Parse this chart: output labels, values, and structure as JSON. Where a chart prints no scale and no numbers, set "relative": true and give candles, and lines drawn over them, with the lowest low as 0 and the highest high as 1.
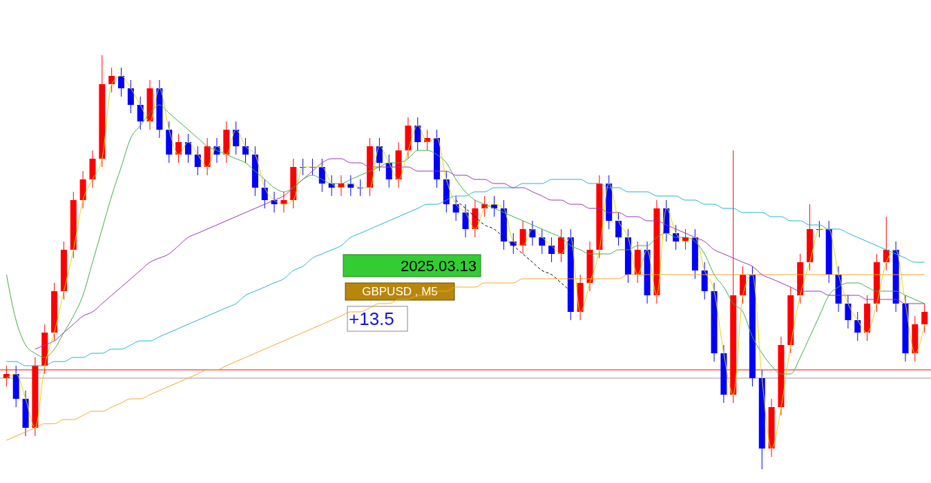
{
  "chart_data": {
    "type": "candlestick",
    "relative": true,
    "categories": [
      null,
      null,
      null,
      null,
      null,
      null,
      null,
      null,
      null,
      null,
      null,
      null,
      null,
      null,
      null,
      null,
      null,
      null,
      null,
      null,
      null,
      null,
      null,
      null,
      null,
      null,
      null,
      null,
      null,
      null,
      null,
      null,
      null,
      null,
      null,
      null,
      null,
      null,
      null,
      null,
      null,
      null,
      null,
      null,
      null,
      null,
      null,
      null,
      null,
      null,
      null,
      null,
      null,
      null,
      null,
      null,
      null,
      null,
      null,
      null,
      null,
      null,
      null,
      null,
      null,
      null,
      null,
      null,
      null,
      null,
      null,
      null,
      null,
      null,
      null,
      null,
      null,
      null,
      null,
      null,
      null,
      null,
      null,
      null,
      null,
      null,
      null,
      null,
      null,
      null,
      null,
      null,
      null,
      null,
      null,
      null,
      null
    ],
    "ohlc": [
      [
        0.22,
        0.25,
        0.2,
        0.23
      ],
      [
        0.23,
        0.25,
        0.15,
        0.17
      ],
      [
        0.17,
        0.19,
        0.08,
        0.1
      ],
      [
        0.1,
        0.27,
        0.08,
        0.25
      ],
      [
        0.25,
        0.35,
        0.23,
        0.33
      ],
      [
        0.33,
        0.45,
        0.31,
        0.43
      ],
      [
        0.43,
        0.55,
        0.41,
        0.53
      ],
      [
        0.53,
        0.67,
        0.51,
        0.65
      ],
      [
        0.65,
        0.72,
        0.63,
        0.7
      ],
      [
        0.7,
        0.77,
        0.68,
        0.75
      ],
      [
        0.75,
        1.0,
        0.73,
        0.93
      ],
      [
        0.93,
        0.97,
        0.91,
        0.95
      ],
      [
        0.95,
        0.97,
        0.9,
        0.92
      ],
      [
        0.92,
        0.94,
        0.86,
        0.88
      ],
      [
        0.88,
        0.9,
        0.82,
        0.84
      ],
      [
        0.84,
        0.94,
        0.82,
        0.92
      ],
      [
        0.92,
        0.94,
        0.8,
        0.82
      ],
      [
        0.82,
        0.84,
        0.74,
        0.76
      ],
      [
        0.76,
        0.81,
        0.74,
        0.79
      ],
      [
        0.79,
        0.81,
        0.74,
        0.76
      ],
      [
        0.76,
        0.78,
        0.71,
        0.73
      ],
      [
        0.73,
        0.8,
        0.71,
        0.78
      ],
      [
        0.78,
        0.8,
        0.74,
        0.76
      ],
      [
        0.76,
        0.84,
        0.74,
        0.82
      ],
      [
        0.82,
        0.84,
        0.76,
        0.78
      ],
      [
        0.78,
        0.8,
        0.74,
        0.76
      ],
      [
        0.76,
        0.78,
        0.66,
        0.68
      ],
      [
        0.68,
        0.7,
        0.63,
        0.65
      ],
      [
        0.65,
        0.67,
        0.62,
        0.64
      ],
      [
        0.64,
        0.67,
        0.62,
        0.65
      ],
      [
        0.65,
        0.75,
        0.63,
        0.73
      ],
      [
        0.73,
        0.75,
        0.71,
        0.73
      ],
      [
        0.73,
        0.75,
        0.71,
        0.73
      ],
      [
        0.73,
        0.75,
        0.67,
        0.69
      ],
      [
        0.69,
        0.71,
        0.66,
        0.68
      ],
      [
        0.68,
        0.71,
        0.66,
        0.69
      ],
      [
        0.69,
        0.71,
        0.66,
        0.68
      ],
      [
        0.68,
        0.7,
        0.66,
        0.68
      ],
      [
        0.68,
        0.8,
        0.66,
        0.78
      ],
      [
        0.78,
        0.8,
        0.72,
        0.74
      ],
      [
        0.74,
        0.76,
        0.68,
        0.7
      ],
      [
        0.7,
        0.79,
        0.68,
        0.77
      ],
      [
        0.77,
        0.85,
        0.75,
        0.83
      ],
      [
        0.83,
        0.85,
        0.77,
        0.79
      ],
      [
        0.79,
        0.82,
        0.77,
        0.8
      ],
      [
        0.8,
        0.82,
        0.68,
        0.7
      ],
      [
        0.7,
        0.72,
        0.62,
        0.64
      ],
      [
        0.64,
        0.66,
        0.6,
        0.62
      ],
      [
        0.62,
        0.64,
        0.56,
        0.58
      ],
      [
        0.58,
        0.65,
        0.56,
        0.63
      ],
      [
        0.63,
        0.66,
        0.61,
        0.64
      ],
      [
        0.64,
        0.66,
        0.61,
        0.63
      ],
      [
        0.63,
        0.65,
        0.53,
        0.55
      ],
      [
        0.55,
        0.57,
        0.52,
        0.54
      ],
      [
        0.54,
        0.6,
        0.52,
        0.58
      ],
      [
        0.58,
        0.6,
        0.54,
        0.56
      ],
      [
        0.56,
        0.58,
        0.52,
        0.54
      ],
      [
        0.54,
        0.56,
        0.5,
        0.52
      ],
      [
        0.52,
        0.58,
        0.5,
        0.56
      ],
      [
        0.56,
        0.58,
        0.36,
        0.38
      ],
      [
        0.38,
        0.47,
        0.36,
        0.45
      ],
      [
        0.45,
        0.55,
        0.43,
        0.53
      ],
      [
        0.53,
        0.71,
        0.51,
        0.69
      ],
      [
        0.69,
        0.71,
        0.58,
        0.6
      ],
      [
        0.6,
        0.62,
        0.54,
        0.56
      ],
      [
        0.56,
        0.58,
        0.45,
        0.47
      ],
      [
        0.47,
        0.55,
        0.45,
        0.53
      ],
      [
        0.53,
        0.55,
        0.4,
        0.42
      ],
      [
        0.42,
        0.65,
        0.4,
        0.63
      ],
      [
        0.63,
        0.65,
        0.55,
        0.57
      ],
      [
        0.57,
        0.59,
        0.53,
        0.55
      ],
      [
        0.55,
        0.58,
        0.53,
        0.56
      ],
      [
        0.56,
        0.58,
        0.46,
        0.48
      ],
      [
        0.48,
        0.5,
        0.41,
        0.43
      ],
      [
        0.43,
        0.45,
        0.26,
        0.28
      ],
      [
        0.28,
        0.3,
        0.16,
        0.18
      ],
      [
        0.18,
        0.77,
        0.16,
        0.42
      ],
      [
        0.42,
        0.49,
        0.4,
        0.47
      ],
      [
        0.47,
        0.49,
        0.2,
        0.22
      ],
      [
        0.22,
        0.24,
        0.0,
        0.05
      ],
      [
        0.05,
        0.17,
        0.03,
        0.15
      ],
      [
        0.15,
        0.32,
        0.13,
        0.3
      ],
      [
        0.3,
        0.44,
        0.28,
        0.42
      ],
      [
        0.42,
        0.52,
        0.4,
        0.5
      ],
      [
        0.5,
        0.64,
        0.48,
        0.58
      ],
      [
        0.58,
        0.6,
        0.56,
        0.58
      ],
      [
        0.58,
        0.6,
        0.45,
        0.47
      ],
      [
        0.47,
        0.49,
        0.38,
        0.4
      ],
      [
        0.4,
        0.42,
        0.34,
        0.36
      ],
      [
        0.36,
        0.38,
        0.31,
        0.33
      ],
      [
        0.33,
        0.42,
        0.31,
        0.4
      ],
      [
        0.4,
        0.52,
        0.38,
        0.5
      ],
      [
        0.5,
        0.61,
        0.48,
        0.53
      ],
      [
        0.53,
        0.55,
        0.38,
        0.4
      ],
      [
        0.4,
        0.42,
        0.26,
        0.28
      ],
      [
        0.28,
        0.37,
        0.26,
        0.35
      ],
      [
        0.35,
        0.4,
        0.33,
        0.38
      ]
    ],
    "colors": [
      "#ff0000",
      "#0000ff",
      "#0000ff",
      "#ff0000",
      "#ff0000",
      "#ff0000",
      "#ff0000",
      "#ff0000",
      "#ff0000",
      "#ff0000",
      "#ff0000",
      "#ff0000",
      "#0000ff",
      "#0000ff",
      "#0000ff",
      "#ff0000",
      "#0000ff",
      "#0000ff",
      "#ff0000",
      "#0000ff",
      "#0000ff",
      "#ff0000",
      "#0000ff",
      "#ff0000",
      "#0000ff",
      "#0000ff",
      "#0000ff",
      "#0000ff",
      "#0000ff",
      "#ff0000",
      "#ff0000",
      "#0000ff",
      "#0000ff",
      "#0000ff",
      "#0000ff",
      "#ff0000",
      "#0000ff",
      "#0000ff",
      "#ff0000",
      "#0000ff",
      "#0000ff",
      "#ff0000",
      "#ff0000",
      "#0000ff",
      "#ff0000",
      "#0000ff",
      "#0000ff",
      "#0000ff",
      "#0000ff",
      "#ff0000",
      "#ff0000",
      "#0000ff",
      "#0000ff",
      "#0000ff",
      "#ff0000",
      "#0000ff",
      "#0000ff",
      "#0000ff",
      "#ff0000",
      "#0000ff",
      "#ff0000",
      "#ff0000",
      "#ff0000",
      "#0000ff",
      "#0000ff",
      "#0000ff",
      "#ff0000",
      "#0000ff",
      "#ff0000",
      "#0000ff",
      "#0000ff",
      "#ff0000",
      "#0000ff",
      "#0000ff",
      "#0000ff",
      "#0000ff",
      "#ff0000",
      "#ff0000",
      "#0000ff",
      "#0000ff",
      "#ff0000",
      "#ff0000",
      "#ff0000",
      "#ff0000",
      "#ff0000",
      "#0000ff",
      "#0000ff",
      "#0000ff",
      "#0000ff",
      "#0000ff",
      "#ff0000",
      "#ff0000",
      "#ff0000",
      "#0000ff",
      "#0000ff",
      "#ff0000",
      "#ff0000"
    ],
    "series": [
      {
        "type": "line",
        "color": "#f5a623",
        "values": [
          0.07,
          0.08,
          0.09,
          0.1,
          0.11,
          0.11,
          0.12,
          0.12,
          0.13,
          0.14,
          0.14,
          0.15,
          0.16,
          0.17,
          0.17,
          0.18,
          0.19,
          0.2,
          0.21,
          0.22,
          0.23,
          0.24,
          0.24,
          0.25,
          0.26,
          0.27,
          0.28,
          0.29,
          0.3,
          0.31,
          0.32,
          0.33,
          0.34,
          0.35,
          0.36,
          0.37,
          0.38,
          0.38,
          0.39,
          0.4,
          0.4,
          0.41,
          0.41,
          0.42,
          0.42,
          0.43,
          0.43,
          0.44,
          0.44,
          0.44,
          0.45,
          0.45,
          0.45,
          0.45,
          0.46,
          0.46,
          0.46,
          0.46,
          0.46,
          0.46,
          0.46,
          0.46,
          0.46,
          0.46,
          0.46,
          0.47,
          0.47,
          0.47,
          0.47,
          0.47,
          0.47,
          0.47,
          0.47,
          0.47,
          0.47,
          0.47,
          0.47,
          0.47,
          0.47,
          0.47,
          0.47,
          0.47,
          0.47,
          0.47,
          0.47,
          0.47,
          0.47,
          0.47,
          0.47,
          0.47,
          0.47,
          0.47,
          0.47,
          0.47,
          0.47,
          0.47,
          0.47
        ]
      },
      {
        "type": "line",
        "color": "#1ab3d9",
        "values": [
          0.26,
          0.26,
          0.25,
          0.25,
          0.25,
          0.26,
          0.26,
          0.27,
          0.27,
          0.28,
          0.28,
          0.29,
          0.29,
          0.3,
          0.31,
          0.31,
          0.32,
          0.33,
          0.34,
          0.35,
          0.36,
          0.37,
          0.38,
          0.39,
          0.4,
          0.42,
          0.43,
          0.44,
          0.45,
          0.46,
          0.48,
          0.49,
          0.51,
          0.52,
          0.53,
          0.54,
          0.56,
          0.57,
          0.58,
          0.59,
          0.6,
          0.61,
          0.62,
          0.63,
          0.64,
          0.64,
          0.65,
          0.66,
          0.66,
          0.67,
          0.67,
          0.68,
          0.68,
          0.68,
          0.69,
          0.69,
          0.69,
          0.7,
          0.7,
          0.7,
          0.7,
          0.69,
          0.69,
          0.68,
          0.68,
          0.67,
          0.67,
          0.67,
          0.66,
          0.66,
          0.66,
          0.65,
          0.65,
          0.64,
          0.64,
          0.63,
          0.63,
          0.62,
          0.62,
          0.62,
          0.61,
          0.61,
          0.6,
          0.6,
          0.59,
          0.59,
          0.58,
          0.58,
          0.57,
          0.56,
          0.55,
          0.54,
          0.53,
          0.52,
          0.51,
          0.5,
          0.5
        ]
      },
      {
        "type": "line",
        "color": "#9b30b8",
        "values": [
          null,
          null,
          null,
          0.29,
          0.3,
          0.31,
          0.33,
          0.35,
          0.37,
          0.38,
          0.4,
          0.42,
          0.44,
          0.46,
          0.48,
          0.5,
          0.51,
          0.52,
          0.54,
          0.56,
          0.57,
          0.58,
          0.59,
          0.6,
          0.61,
          0.62,
          0.63,
          0.64,
          0.65,
          0.66,
          0.68,
          0.7,
          0.72,
          0.74,
          0.75,
          0.75,
          0.74,
          0.74,
          0.73,
          0.73,
          0.73,
          0.73,
          0.73,
          0.72,
          0.72,
          0.72,
          0.72,
          0.71,
          0.71,
          0.7,
          0.7,
          0.69,
          0.69,
          0.68,
          0.68,
          0.67,
          0.66,
          0.65,
          0.65,
          0.64,
          0.64,
          0.63,
          0.63,
          0.62,
          0.62,
          0.61,
          0.61,
          0.6,
          0.6,
          0.59,
          0.58,
          0.57,
          0.56,
          0.55,
          0.53,
          0.52,
          0.51,
          0.5,
          0.49,
          0.47,
          0.46,
          0.45,
          0.44,
          0.43,
          0.43,
          0.43,
          0.42,
          0.42,
          0.42,
          0.42,
          0.41,
          0.41,
          0.41,
          0.41,
          0.4,
          0.4,
          0.4
        ]
      },
      {
        "type": "line",
        "color": "#3cb043",
        "values": [
          0.47,
          0.36,
          0.3,
          0.28,
          0.27,
          0.29,
          0.33,
          0.37,
          0.42,
          0.5,
          0.58,
          0.66,
          0.73,
          0.8,
          0.83,
          0.86,
          0.88,
          0.86,
          0.84,
          0.82,
          0.8,
          0.78,
          0.77,
          0.76,
          0.75,
          0.74,
          0.72,
          0.7,
          0.68,
          0.67,
          0.68,
          0.7,
          0.71,
          0.7,
          0.69,
          0.69,
          0.7,
          0.71,
          0.72,
          0.73,
          0.74,
          0.74,
          0.75,
          0.77,
          0.77,
          0.76,
          0.74,
          0.7,
          0.67,
          0.65,
          0.64,
          0.63,
          0.62,
          0.61,
          0.6,
          0.59,
          0.58,
          0.57,
          0.56,
          0.54,
          0.53,
          0.52,
          0.52,
          0.52,
          0.53,
          0.53,
          0.54,
          0.54,
          0.56,
          0.57,
          0.56,
          0.56,
          0.55,
          0.52,
          0.47,
          0.44,
          0.4,
          0.38,
          0.32,
          0.28,
          0.25,
          0.23,
          0.23,
          0.27,
          0.32,
          0.37,
          0.42,
          0.44,
          0.45,
          0.45,
          0.44,
          0.43,
          0.43,
          0.43,
          0.42,
          0.41,
          0.4
        ]
      },
      {
        "type": "line",
        "color": "#e6d800",
        "values": [
          0.22,
          0.23,
          0.17,
          0.1,
          0.25,
          0.33,
          0.43,
          0.53,
          0.65,
          0.7,
          0.75,
          0.93,
          0.95,
          0.92,
          0.88,
          0.84,
          0.92,
          0.82,
          0.76,
          0.79,
          0.76,
          0.73,
          0.78,
          0.76,
          0.82,
          0.78,
          0.76,
          0.68,
          0.65,
          0.64,
          0.65,
          0.73,
          0.73,
          0.73,
          0.69,
          0.68,
          0.69,
          0.68,
          0.68,
          0.78,
          0.74,
          0.7,
          0.77,
          0.83,
          0.79,
          0.8,
          0.7,
          0.64,
          0.62,
          0.58,
          0.63,
          0.64,
          0.63,
          0.55,
          0.54,
          0.58,
          0.56,
          0.54,
          0.52,
          0.56,
          0.38,
          0.45,
          0.53,
          0.69,
          0.6,
          0.56,
          0.47,
          0.53,
          0.42,
          0.63,
          0.57,
          0.55,
          0.56,
          0.48,
          0.43,
          0.28,
          0.18,
          0.42,
          0.47,
          0.22,
          0.05,
          0.15,
          0.3,
          0.42,
          0.5,
          0.58,
          0.58,
          0.47,
          0.4,
          0.36,
          0.33,
          0.4,
          0.5,
          0.53,
          0.4,
          0.28,
          0.35
        ]
      },
      {
        "type": "line",
        "color": "#000000",
        "line_style": "dashed",
        "values": [
          null,
          null,
          null,
          null,
          null,
          null,
          null,
          null,
          null,
          null,
          null,
          null,
          null,
          null,
          null,
          null,
          null,
          null,
          null,
          null,
          null,
          null,
          null,
          null,
          null,
          null,
          null,
          null,
          null,
          null,
          null,
          null,
          null,
          null,
          null,
          null,
          null,
          null,
          null,
          null,
          null,
          null,
          null,
          null,
          null,
          null,
          null,
          0.65,
          0.63,
          0.61,
          0.59,
          0.58,
          0.56,
          0.54,
          0.52,
          0.5,
          0.48,
          0.47,
          0.45,
          0.43,
          null,
          null,
          null,
          null,
          null,
          null,
          null,
          null,
          null,
          null,
          null,
          null,
          null,
          null,
          null,
          null,
          null,
          null,
          null,
          null,
          null,
          null,
          null,
          null,
          null,
          null,
          null,
          null,
          null,
          null,
          null,
          null,
          null,
          null,
          null,
          null,
          null
        ]
      }
    ],
    "ref_lines": [
      {
        "axis": "y",
        "value": 0.24,
        "color": "#ff0000"
      },
      {
        "axis": "y",
        "value": 0.22,
        "color": "#999999"
      }
    ],
    "annotations": [
      "2025.03.13",
      "GBPUSD , M5",
      "+13.5"
    ]
  }
}
